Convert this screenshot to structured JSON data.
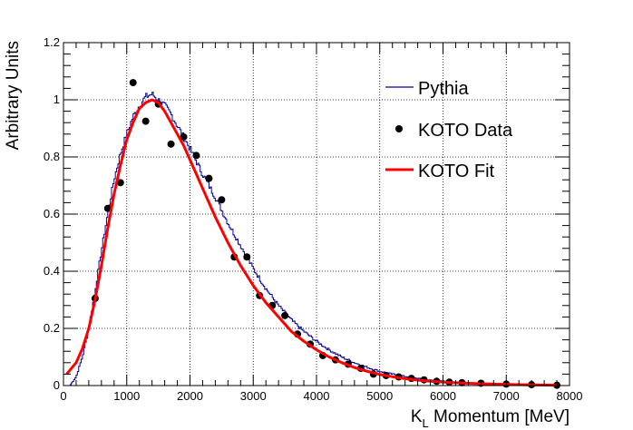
{
  "chart_data": {
    "type": "line",
    "title": "",
    "xlabel_main": "K",
    "xlabel_sub": "L",
    "xlabel_rest": " Momentum [MeV]",
    "ylabel": "Arbitrary Units",
    "xlim": [
      0,
      8000
    ],
    "ylim": [
      0,
      1.2
    ],
    "grid": true,
    "x_ticks": [
      0,
      1000,
      2000,
      3000,
      4000,
      5000,
      6000,
      7000,
      8000
    ],
    "y_ticks": [
      0,
      0.2,
      0.4,
      0.6,
      0.8,
      1,
      1.2
    ],
    "x_tick_labels": [
      "0",
      "1000",
      "2000",
      "3000",
      "4000",
      "5000",
      "6000",
      "7000",
      "8000"
    ],
    "y_tick_labels": [
      "0",
      "0.2",
      "0.4",
      "0.6",
      "0.8",
      "1",
      "1.2"
    ],
    "legend_position": "top-right",
    "series": [
      {
        "name": "Pythia",
        "style": "step",
        "color": "#000099",
        "x": [
          100,
          200,
          300,
          400,
          500,
          600,
          700,
          800,
          900,
          1000,
          1100,
          1200,
          1300,
          1400,
          1500,
          1600,
          1700,
          1800,
          1900,
          2000,
          2200,
          2400,
          2600,
          2800,
          3000,
          3200,
          3400,
          3600,
          3800,
          4000,
          4200,
          4400,
          4600,
          4800,
          5000,
          5200,
          5400,
          5600,
          5800,
          6000,
          6500,
          7000,
          7500,
          7800
        ],
        "y": [
          0.0,
          0.03,
          0.1,
          0.2,
          0.33,
          0.47,
          0.6,
          0.72,
          0.81,
          0.88,
          0.94,
          0.98,
          1.01,
          1.02,
          1.0,
          0.98,
          0.95,
          0.91,
          0.87,
          0.83,
          0.74,
          0.66,
          0.57,
          0.49,
          0.41,
          0.34,
          0.28,
          0.23,
          0.19,
          0.155,
          0.125,
          0.1,
          0.08,
          0.064,
          0.05,
          0.04,
          0.032,
          0.025,
          0.019,
          0.015,
          0.008,
          0.004,
          0.002,
          0.001
        ]
      },
      {
        "name": "KOTO Data",
        "style": "markers",
        "color": "#000000",
        "x": [
          500,
          700,
          900,
          1100,
          1300,
          1500,
          1700,
          1900,
          2100,
          2300,
          2500,
          2700,
          2900,
          3100,
          3300,
          3500,
          3700,
          3900,
          4100,
          4300,
          4500,
          4700,
          4900,
          5100,
          5300,
          5500,
          5700,
          5900,
          6100,
          6300,
          6600,
          7000,
          7400,
          7800
        ],
        "y": [
          0.305,
          0.62,
          0.71,
          1.06,
          0.925,
          0.985,
          0.845,
          0.87,
          0.805,
          0.725,
          0.65,
          0.45,
          0.45,
          0.315,
          0.28,
          0.245,
          0.18,
          0.145,
          0.105,
          0.09,
          0.075,
          0.06,
          0.04,
          0.035,
          0.03,
          0.025,
          0.02,
          0.015,
          0.012,
          0.01,
          0.008,
          0.005,
          0.003,
          0.001
        ]
      },
      {
        "name": "KOTO Fit",
        "style": "line",
        "color": "#ff0000",
        "x": [
          50,
          200,
          300,
          400,
          500,
          600,
          700,
          800,
          900,
          1000,
          1100,
          1200,
          1300,
          1400,
          1500,
          1600,
          1700,
          1800,
          1900,
          2000,
          2200,
          2400,
          2600,
          2800,
          3000,
          3200,
          3400,
          3600,
          3800,
          4000,
          4200,
          4400,
          4600,
          4800,
          5000,
          5200,
          5400,
          5600,
          5800,
          6000,
          6500,
          7000,
          7500,
          7800
        ],
        "y": [
          0.04,
          0.08,
          0.13,
          0.2,
          0.3,
          0.42,
          0.55,
          0.67,
          0.77,
          0.86,
          0.92,
          0.97,
          0.99,
          1.0,
          0.99,
          0.96,
          0.92,
          0.88,
          0.84,
          0.79,
          0.69,
          0.59,
          0.5,
          0.42,
          0.35,
          0.29,
          0.24,
          0.19,
          0.155,
          0.125,
          0.1,
          0.08,
          0.063,
          0.05,
          0.039,
          0.031,
          0.024,
          0.019,
          0.015,
          0.012,
          0.007,
          0.004,
          0.002,
          0.001
        ]
      }
    ]
  }
}
